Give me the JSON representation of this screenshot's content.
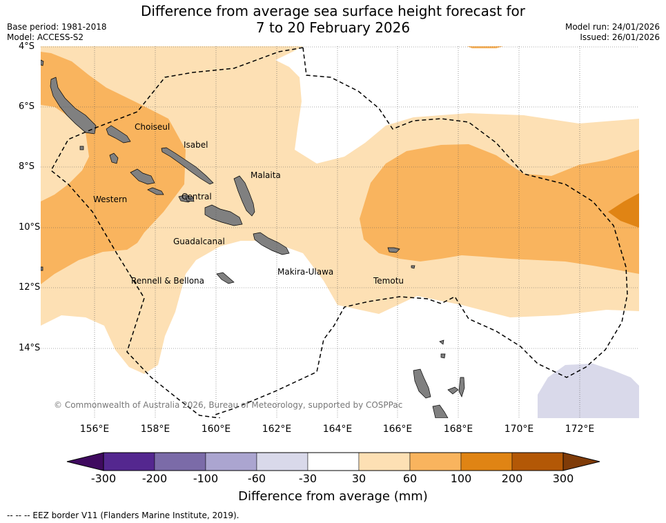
{
  "title_line1": "Difference from average sea surface height forecast for",
  "title_line2": "7 to 20 February 2026",
  "base_period": "Base period: 1981-2018",
  "model": "Model: ACCESS-S2",
  "model_run": "Model run: 24/01/2026",
  "issued": "Issued: 26/01/2026",
  "latitudes": [
    "4°S",
    "6°S",
    "8°S",
    "10°S",
    "12°S",
    "14°S"
  ],
  "longitudes": [
    "156°E",
    "158°E",
    "160°E",
    "162°E",
    "164°E",
    "166°E",
    "168°E",
    "170°E",
    "172°E"
  ],
  "places": {
    "choiseul": "Choiseul",
    "isabel": "Isabel",
    "malaita": "Malaita",
    "western": "Western",
    "central": "Central",
    "guadalcanal": "Guadalcanal",
    "makira_ulawa": "Makira-Ulawa",
    "rennell_bellona": "Rennell & Bellona",
    "temotu": "Temotu"
  },
  "copyright": "© Commonwealth of Australia 2026, Bureau of Meteorology, supported by COSPPac",
  "colorbar": {
    "title": "Difference from average (mm)",
    "labels": [
      "-300",
      "-200",
      "-100",
      "-60",
      "-30",
      "30",
      "60",
      "100",
      "200",
      "300"
    ],
    "colors": [
      "#3f0a5f",
      "#54278f",
      "#7b6ba8",
      "#aba5d0",
      "#d9d9ea",
      "#ffffff",
      "#fde0b4",
      "#f9b45e",
      "#e08414",
      "#b35806",
      "#7f3b08"
    ]
  },
  "eez_note": "--  --  -- EEZ border V11 (Flanders Marine Institute, 2019)."
}
